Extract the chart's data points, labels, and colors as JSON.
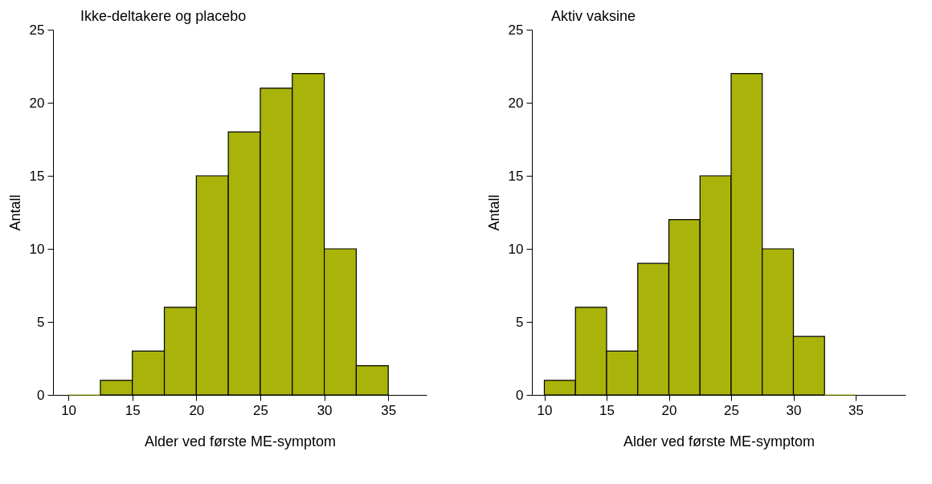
{
  "chart_data": [
    {
      "type": "histogram",
      "title": "Ikke-deltakere og placebo",
      "xlabel": "Alder ved første ME-symptom",
      "ylabel": "Antall",
      "bins": [
        10,
        12.5,
        15,
        17.5,
        20,
        22.5,
        25,
        27.5,
        30,
        32.5,
        35
      ],
      "values": [
        0,
        1,
        3,
        6,
        15,
        18,
        21,
        22,
        10,
        2
      ],
      "color": "#a9b30a",
      "xlim": [
        8.8,
        38
      ],
      "xticks": [
        10,
        15,
        20,
        25,
        30,
        35
      ],
      "ylim": [
        0,
        25
      ],
      "yticks": [
        0,
        5,
        10,
        15,
        20,
        25
      ]
    },
    {
      "type": "histogram",
      "title": "Aktiv vaksine",
      "xlabel": "Alder ved første ME-symptom",
      "ylabel": "Antall",
      "bins": [
        10,
        12.5,
        15,
        17.5,
        20,
        22.5,
        25,
        27.5,
        30,
        32.5,
        35
      ],
      "values": [
        1,
        6,
        3,
        9,
        12,
        15,
        22,
        10,
        4,
        0
      ],
      "color": "#a9b30a",
      "xlim": [
        9,
        39
      ],
      "xticks": [
        10,
        15,
        20,
        25,
        30,
        35
      ],
      "ylim": [
        0,
        25
      ],
      "yticks": [
        0,
        5,
        10,
        15,
        20,
        25
      ]
    }
  ]
}
